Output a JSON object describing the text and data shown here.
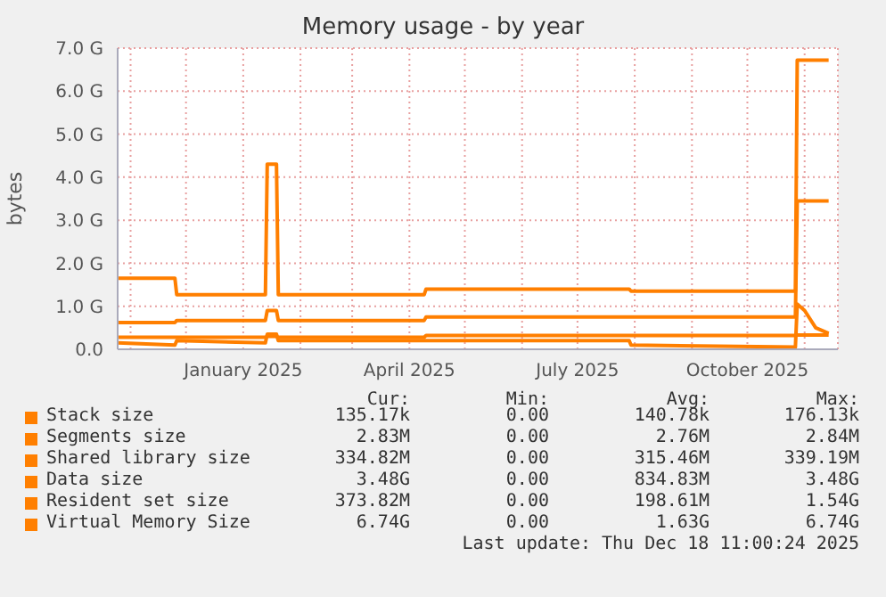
{
  "chart_data": {
    "type": "line",
    "title": "Memory usage - by year",
    "ylabel": "bytes",
    "x": [
      "2024-10-25",
      "2024-11-25",
      "2024-11-26",
      "2025-01-13",
      "2025-01-14",
      "2025-01-19",
      "2025-01-20",
      "2025-04-09",
      "2025-04-10",
      "2025-07-29",
      "2025-07-30",
      "2025-10-27",
      "2025-10-28",
      "2025-11-01",
      "2025-11-07",
      "2025-11-14"
    ],
    "series": [
      {
        "name": "Stack size",
        "color": "#ff7f00",
        "values": [
          null,
          null,
          null,
          null,
          null,
          null,
          null,
          null,
          null,
          null,
          null,
          null,
          null,
          null,
          null,
          null
        ]
      },
      {
        "name": "Segments size",
        "color": "#ff7f00",
        "values": [
          null,
          null,
          null,
          null,
          null,
          null,
          null,
          null,
          null,
          null,
          null,
          null,
          null,
          null,
          null,
          null
        ]
      },
      {
        "name": "Shared library size",
        "color": "#ff7f00",
        "values": [
          0.28,
          0.28,
          0.28,
          0.28,
          0.3,
          0.3,
          0.28,
          0.28,
          0.32,
          0.32,
          0.32,
          0.32,
          0.33,
          0.33,
          0.33,
          0.33
        ]
      },
      {
        "name": "Data size",
        "color": "#ff7f00",
        "values": [
          0.62,
          0.62,
          0.67,
          0.67,
          0.9,
          0.9,
          0.67,
          0.67,
          0.75,
          0.75,
          0.75,
          0.75,
          3.45,
          3.45,
          3.45,
          3.45
        ]
      },
      {
        "name": "Resident set size",
        "color": "#ff7f00",
        "values": [
          0.15,
          0.1,
          0.2,
          0.15,
          0.35,
          0.35,
          0.2,
          0.2,
          0.2,
          0.2,
          0.1,
          0.05,
          1.05,
          0.9,
          0.5,
          0.37
        ]
      },
      {
        "name": "Virtual Memory Size",
        "color": "#ff7f00",
        "values": [
          1.65,
          1.65,
          1.27,
          1.27,
          4.3,
          4.3,
          1.27,
          1.27,
          1.4,
          1.4,
          1.35,
          1.35,
          6.72,
          6.72,
          6.72,
          6.72
        ]
      }
    ],
    "xlim": [
      "2024-10-25",
      "2025-11-19"
    ],
    "xticks": [
      {
        "value": "2024-11-01",
        "label": null
      },
      {
        "value": "2024-12-01",
        "label": null
      },
      {
        "value": "2025-01-01",
        "label": "January 2025"
      },
      {
        "value": "2025-02-01",
        "label": null
      },
      {
        "value": "2025-03-01",
        "label": null
      },
      {
        "value": "2025-04-01",
        "label": "April 2025"
      },
      {
        "value": "2025-05-01",
        "label": null
      },
      {
        "value": "2025-06-01",
        "label": null
      },
      {
        "value": "2025-07-01",
        "label": "July 2025"
      },
      {
        "value": "2025-08-01",
        "label": null
      },
      {
        "value": "2025-09-01",
        "label": null
      },
      {
        "value": "2025-10-01",
        "label": "October 2025"
      },
      {
        "value": "2025-11-01",
        "label": null
      }
    ],
    "ylim": [
      0,
      7
    ],
    "yticks": [
      {
        "value": 0,
        "label": "0.0"
      },
      {
        "value": 1,
        "label": "1.0 G"
      },
      {
        "value": 2,
        "label": "2.0 G"
      },
      {
        "value": 3,
        "label": "3.0 G"
      },
      {
        "value": 4,
        "label": "4.0 G"
      },
      {
        "value": 5,
        "label": "5.0 G"
      },
      {
        "value": 6,
        "label": "6.0 G"
      },
      {
        "value": 7,
        "label": "7.0 G"
      }
    ],
    "grid": true,
    "legend": "bottom",
    "marker": "none",
    "annotations": [
      "Cur:",
      "Min:",
      "Avg:",
      "Max:",
      "135.17k",
      "0.00",
      "140.78k",
      "176.13k",
      "2.83M",
      "0.00",
      "2.76M",
      "2.84M",
      "334.82M",
      "0.00",
      "315.46M",
      "339.19M",
      "3.48G",
      "0.00",
      "834.83M",
      "3.48G",
      "373.82M",
      "0.00",
      "198.61M",
      "1.54G",
      "6.74G",
      "0.00",
      "1.63G",
      "6.74G",
      "Last update: Thu Dec 18 11:00:24 2025"
    ]
  }
}
